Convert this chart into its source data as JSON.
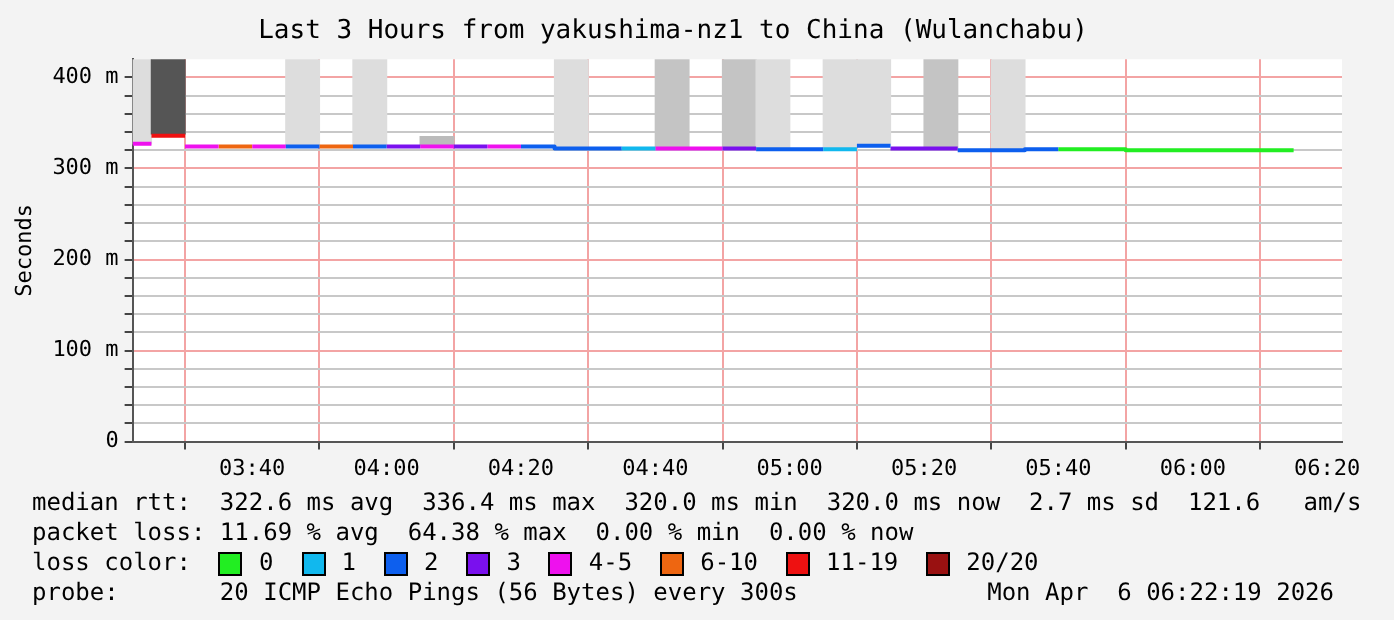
{
  "chart_data": {
    "type": "line",
    "title": "Last 3 Hours from yakushima-nz1 to China (Wulanchabu)",
    "ylabel": "Seconds",
    "legend_title": "loss color:",
    "legend": "bottom",
    "grid": true,
    "xlim": [
      3.37,
      6.37
    ],
    "ylim": [
      0,
      420
    ],
    "xticks": [
      {
        "value": 3.6667,
        "label": "03:40"
      },
      {
        "value": 4.0,
        "label": "04:00"
      },
      {
        "value": 4.3333,
        "label": "04:20"
      },
      {
        "value": 4.6667,
        "label": "04:40"
      },
      {
        "value": 5.0,
        "label": "05:00"
      },
      {
        "value": 5.3333,
        "label": "05:20"
      },
      {
        "value": 5.6667,
        "label": "05:40"
      },
      {
        "value": 6.0,
        "label": "06:00"
      },
      {
        "value": 6.3333,
        "label": "06:20"
      }
    ],
    "yticks": [
      0,
      {
        "value": 20,
        "label": null
      },
      {
        "value": 40,
        "label": null
      },
      {
        "value": 60,
        "label": null
      },
      {
        "value": 80,
        "label": null
      },
      {
        "value": 100,
        "label": "100 m"
      },
      {
        "value": 120,
        "label": null
      },
      {
        "value": 140,
        "label": null
      },
      {
        "value": 160,
        "label": null
      },
      {
        "value": 180,
        "label": null
      },
      {
        "value": 200,
        "label": "200 m"
      },
      {
        "value": 220,
        "label": null
      },
      {
        "value": 240,
        "label": null
      },
      {
        "value": 260,
        "label": null
      },
      {
        "value": 280,
        "label": null
      },
      {
        "value": 300,
        "label": "300 m"
      },
      {
        "value": 320,
        "label": null
      },
      {
        "value": 340,
        "label": null
      },
      {
        "value": 360,
        "label": null
      },
      {
        "value": 380,
        "label": null
      },
      {
        "value": 400,
        "label": "400 m"
      }
    ],
    "series": [
      {
        "type": "bar",
        "x": [
          3.375,
          3.4583,
          3.7917,
          3.9583,
          4.125,
          4.4583,
          4.7083,
          4.875,
          4.9583,
          5.125,
          5.2083,
          5.375,
          5.5417
        ],
        "base": [
          327,
          338,
          324,
          324,
          326,
          322,
          322,
          322,
          321,
          321,
          325,
          322,
          320
        ],
        "values": [
          93,
          82,
          96,
          96,
          9,
          98,
          98,
          98,
          99,
          99,
          95,
          98,
          100
        ],
        "colors": [
          "#dddddd",
          "#555555",
          "#dddddd",
          "#dddddd",
          "#bbbbbb",
          "#dddddd",
          "#c4c4c4",
          "#c4c4c4",
          "#dddddd",
          "#dddddd",
          "#dddddd",
          "#c4c4c4",
          "#dddddd"
        ]
      },
      {
        "name": "0",
        "color": "#22ee22",
        "x": [
          5.6667,
          5.8333,
          5.8333,
          6.25
        ],
        "values": [
          321,
          321,
          320,
          320
        ]
      },
      {
        "name": "1",
        "color": "#11b8ee",
        "x": [
          4.5833,
          4.6667,
          null,
          5.0833,
          5.1667
        ],
        "values": [
          322,
          322,
          null,
          321,
          321
        ]
      },
      {
        "name": "2",
        "color": "#0d5fee",
        "x": [
          3.75,
          3.8333,
          null,
          3.9167,
          4.0,
          null,
          4.3333,
          4.4167,
          4.4167,
          4.5833,
          null,
          4.9167,
          5.0833,
          null,
          5.1667,
          5.25,
          null,
          5.4167,
          5.5833,
          5.5833,
          5.6667
        ],
        "values": [
          324,
          324,
          null,
          324,
          324,
          null,
          324,
          324,
          322,
          322,
          null,
          321,
          321,
          null,
          325,
          325,
          null,
          320,
          320,
          321,
          321
        ]
      },
      {
        "name": "3",
        "color": "#7a10ee",
        "x": [
          4.0,
          4.0833,
          null,
          4.1667,
          4.25,
          null,
          4.8333,
          4.9167,
          null,
          5.25,
          5.4167
        ],
        "values": [
          324,
          324,
          null,
          324,
          324,
          null,
          322,
          322,
          null,
          322,
          322
        ]
      },
      {
        "name": "4-5",
        "color": "#ee11ee",
        "x": [
          3.37,
          3.4167,
          null,
          3.5,
          3.5833,
          null,
          3.6667,
          3.75,
          null,
          4.0833,
          4.1667,
          null,
          4.25,
          4.3333,
          null,
          4.6667,
          4.8333
        ],
        "values": [
          327,
          327,
          null,
          324,
          324,
          null,
          324,
          324,
          null,
          324,
          324,
          null,
          324,
          324,
          null,
          322,
          322
        ]
      },
      {
        "name": "6-10",
        "color": "#ee6611",
        "x": [
          3.5833,
          3.6667,
          null,
          3.8333,
          3.9167
        ],
        "values": [
          324,
          324,
          null,
          324,
          324
        ]
      },
      {
        "name": "11-19",
        "color": "#ee1111",
        "x": [
          3.4167,
          3.5
        ],
        "values": [
          336,
          336
        ]
      },
      {
        "name": "20/20",
        "color": "#991111"
      }
    ],
    "annotations": [
      "median rtt:  322.6 ms avg  336.4 ms max  320.0 ms min  320.0 ms now  2.7 ms sd  121.6   am/s",
      "packet loss: 11.69 % avg  64.38 % max  0.00 % min  0.00 % now",
      "probe:       20 ICMP Echo Pings (56 Bytes) every 300s",
      "Mon Apr  6 06:22:19 2026"
    ]
  }
}
